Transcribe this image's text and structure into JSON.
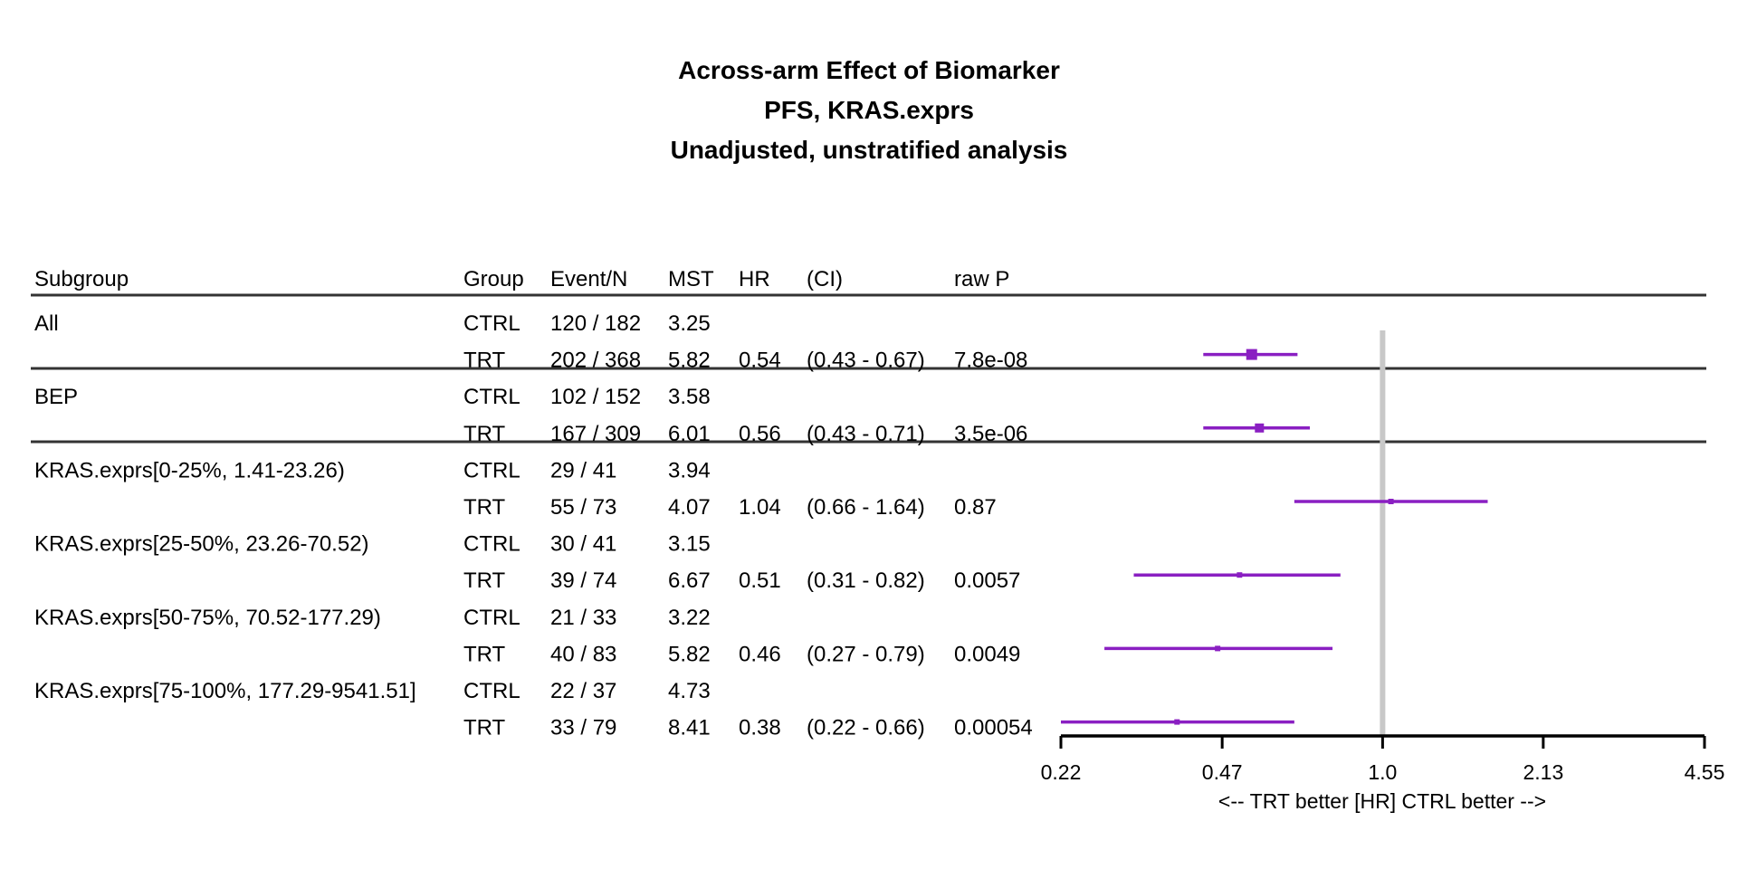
{
  "chart_data": {
    "type": "forest",
    "title_lines": [
      "Across-arm Effect of Biomarker",
      "PFS, KRAS.exprs",
      "Unadjusted, unstratified analysis"
    ],
    "columns": [
      "Subgroup",
      "Group",
      "Event/N",
      "MST",
      "HR",
      "(CI)",
      "raw P"
    ],
    "rows": [
      {
        "subgroup": "All",
        "group": "CTRL",
        "event_n": "120 / 182",
        "mst": "3.25",
        "hr": "",
        "ci": "",
        "p": ""
      },
      {
        "subgroup": "",
        "group": "TRT",
        "event_n": "202 / 368",
        "mst": "5.82",
        "hr": "0.54",
        "ci": "(0.43 - 0.67)",
        "p": "7.8e-08"
      },
      {
        "subgroup": "BEP",
        "group": "CTRL",
        "event_n": "102 / 152",
        "mst": "3.58",
        "hr": "",
        "ci": "",
        "p": ""
      },
      {
        "subgroup": "",
        "group": "TRT",
        "event_n": "167 / 309",
        "mst": "6.01",
        "hr": "0.56",
        "ci": "(0.43 - 0.71)",
        "p": "3.5e-06"
      },
      {
        "subgroup": "KRAS.exprs[0-25%, 1.41-23.26)",
        "group": "CTRL",
        "event_n": "29 / 41",
        "mst": "3.94",
        "hr": "",
        "ci": "",
        "p": ""
      },
      {
        "subgroup": "",
        "group": "TRT",
        "event_n": "55 / 73",
        "mst": "4.07",
        "hr": "1.04",
        "ci": "(0.66 - 1.64)",
        "p": "0.87"
      },
      {
        "subgroup": "KRAS.exprs[25-50%, 23.26-70.52)",
        "group": "CTRL",
        "event_n": "30 / 41",
        "mst": "3.15",
        "hr": "",
        "ci": "",
        "p": ""
      },
      {
        "subgroup": "",
        "group": "TRT",
        "event_n": "39 / 74",
        "mst": "6.67",
        "hr": "0.51",
        "ci": "(0.31 - 0.82)",
        "p": "0.0057"
      },
      {
        "subgroup": "KRAS.exprs[50-75%, 70.52-177.29)",
        "group": "CTRL",
        "event_n": "21 / 33",
        "mst": "3.22",
        "hr": "",
        "ci": "",
        "p": ""
      },
      {
        "subgroup": "",
        "group": "TRT",
        "event_n": "40 / 83",
        "mst": "5.82",
        "hr": "0.46",
        "ci": "(0.27 - 0.79)",
        "p": "0.0049"
      },
      {
        "subgroup": "KRAS.exprs[75-100%, 177.29-9541.51]",
        "group": "CTRL",
        "event_n": "22 / 37",
        "mst": "4.73",
        "hr": "",
        "ci": "",
        "p": ""
      },
      {
        "subgroup": "",
        "group": "TRT",
        "event_n": "33 / 79",
        "mst": "8.41",
        "hr": "0.38",
        "ci": "(0.22 - 0.66)",
        "p": "0.00054"
      }
    ],
    "estimates": [
      {
        "row": 1,
        "hr": 0.54,
        "lo": 0.43,
        "hi": 0.67,
        "box": "large"
      },
      {
        "row": 3,
        "hr": 0.56,
        "lo": 0.43,
        "hi": 0.71,
        "box": "medium"
      },
      {
        "row": 5,
        "hr": 1.04,
        "lo": 0.66,
        "hi": 1.64,
        "box": "small"
      },
      {
        "row": 7,
        "hr": 0.51,
        "lo": 0.31,
        "hi": 0.82,
        "box": "small"
      },
      {
        "row": 9,
        "hr": 0.46,
        "lo": 0.27,
        "hi": 0.79,
        "box": "small"
      },
      {
        "row": 11,
        "hr": 0.38,
        "lo": 0.22,
        "hi": 0.66,
        "box": "small"
      }
    ],
    "x_axis": {
      "scale": "log",
      "ticks": [
        0.22,
        0.47,
        1.0,
        2.13,
        4.55
      ],
      "tick_labels": [
        "0.22",
        "0.47",
        "1.0",
        "2.13",
        "4.55"
      ],
      "xlim": [
        0.22,
        4.55
      ],
      "reference": 1.0,
      "label": "<--  TRT better [HR]  CTRL better -->"
    },
    "colors": {
      "estimate": "#8a1fc2",
      "reference_line": "#c8c8c8",
      "rules": "#333333"
    }
  }
}
